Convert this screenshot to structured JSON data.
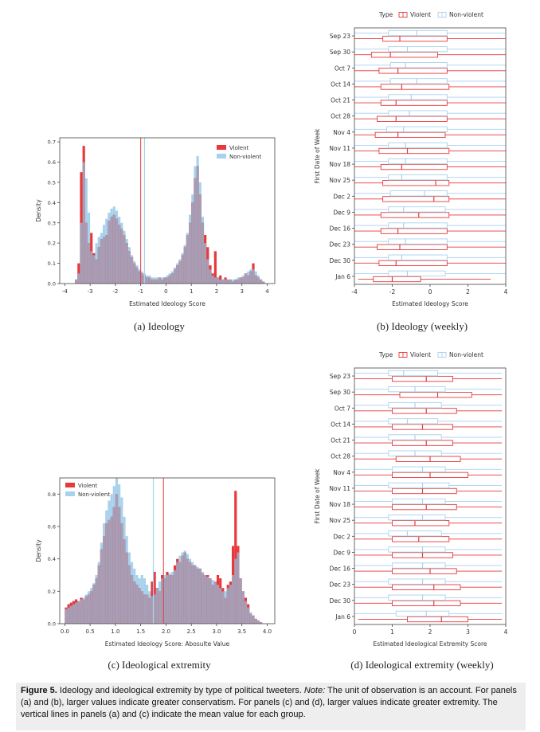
{
  "captions": {
    "a": "(a) Ideology",
    "b": "(b) Ideology (weekly)",
    "c": "(c) Ideological extremity",
    "d": "(d) Ideological extremity (weekly)"
  },
  "figure_caption": {
    "label": "Figure 5.",
    "text": "Ideology and ideological extremity by type of political tweeters.",
    "note_label": "Note:",
    "note_text": "The unit of observation is an account. For panels (a) and (b), larger values indicate greater conservatism. For panels (c) and (d), larger values indicate greater extremity. The vertical lines in panels (a) and (c) indicate the mean value for each group."
  },
  "colors": {
    "violent": "#e8383b",
    "nonviolent": "#a8d2ec",
    "overlap": "#a79eb6"
  },
  "chart_data": [
    {
      "id": "a",
      "type": "histogram",
      "xlabel": "Estimated Ideology Score",
      "ylabel": "Density",
      "xlim": [
        -4.2,
        4.3
      ],
      "ylim": [
        0,
        0.72
      ],
      "xticks": [
        -4,
        -3,
        -2,
        -1,
        0,
        1,
        2,
        3,
        4
      ],
      "yticks": [
        0.0,
        0.1,
        0.2,
        0.3,
        0.4,
        0.5,
        0.6,
        0.7
      ],
      "legend": [
        "Violent",
        "Non-violent"
      ],
      "legend_position": "top-right",
      "means": {
        "Violent": -1.0,
        "Non-violent": -0.85
      },
      "grid": false,
      "series": [
        {
          "name": "Non-violent",
          "x_start": -3.6,
          "bin_width": 0.1,
          "values": [
            0.02,
            0.05,
            0.3,
            0.6,
            0.52,
            0.35,
            0.16,
            0.14,
            0.2,
            0.23,
            0.25,
            0.29,
            0.32,
            0.35,
            0.37,
            0.38,
            0.36,
            0.33,
            0.3,
            0.26,
            0.22,
            0.18,
            0.14,
            0.11,
            0.09,
            0.07,
            0.06,
            0.05,
            0.04,
            0.04,
            0.03,
            0.03,
            0.03,
            0.03,
            0.03,
            0.03,
            0.04,
            0.05,
            0.06,
            0.08,
            0.1,
            0.12,
            0.15,
            0.19,
            0.25,
            0.34,
            0.44,
            0.58,
            0.63,
            0.5,
            0.33,
            0.2,
            0.12,
            0.07,
            0.04,
            0.03,
            0.03,
            0.02,
            0.02,
            0.02,
            0.02,
            0.02,
            0.02,
            0.02,
            0.03,
            0.03,
            0.04,
            0.05,
            0.06,
            0.07,
            0.07,
            0.06,
            0.04,
            0.02,
            0.01
          ]
        },
        {
          "name": "Violent",
          "x_start": -3.6,
          "bin_width": 0.1,
          "values": [
            0.02,
            0.1,
            0.55,
            0.68,
            0.3,
            0.2,
            0.25,
            0.15,
            0.12,
            0.18,
            0.22,
            0.23,
            0.24,
            0.31,
            0.33,
            0.34,
            0.32,
            0.29,
            0.27,
            0.24,
            0.2,
            0.16,
            0.13,
            0.1,
            0.08,
            0.06,
            0.05,
            0.04,
            0.03,
            0.03,
            0.02,
            0.02,
            0.02,
            0.03,
            0.02,
            0.03,
            0.03,
            0.04,
            0.05,
            0.07,
            0.09,
            0.11,
            0.14,
            0.18,
            0.24,
            0.3,
            0.4,
            0.52,
            0.58,
            0.44,
            0.3,
            0.24,
            0.18,
            0.09,
            0.05,
            0.16,
            0.03,
            0.04,
            0.02,
            0.03,
            0.02,
            0.02,
            0.01,
            0.02,
            0.02,
            0.03,
            0.03,
            0.05,
            0.04,
            0.06,
            0.1,
            0.04,
            0.03,
            0.02,
            0.01
          ]
        }
      ]
    },
    {
      "id": "b",
      "type": "boxplot",
      "orientation": "horizontal",
      "xlabel": "Estimated Ideology Score",
      "ylabel": "First Date of Week",
      "xlim": [
        -4,
        4
      ],
      "xticks": [
        -4,
        -2,
        0,
        2,
        4
      ],
      "legend_title": "Type",
      "legend": [
        "Violent",
        "Non-violent"
      ],
      "legend_position": "top",
      "categories": [
        "Sep 23",
        "Sep 30",
        "Oct 7",
        "Oct 14",
        "Oct 21",
        "Oct 28",
        "Nov 4",
        "Nov 11",
        "Nov 18",
        "Nov 25",
        "Dec 2",
        "Dec 9",
        "Dec 16",
        "Dec 23",
        "Dec 30",
        "Jan 6"
      ],
      "series": [
        {
          "name": "Violent",
          "boxes": [
            [
              -4,
              -2.5,
              -1.6,
              0.9,
              4
            ],
            [
              -4,
              -3.1,
              -2.1,
              0.4,
              4
            ],
            [
              -4,
              -2.7,
              -1.7,
              0.9,
              4
            ],
            [
              -4,
              -2.6,
              -1.5,
              1.0,
              4
            ],
            [
              -4,
              -2.6,
              -1.8,
              0.9,
              4
            ],
            [
              -4,
              -2.8,
              -1.8,
              0.9,
              4
            ],
            [
              -4,
              -2.9,
              -1.7,
              0.8,
              4
            ],
            [
              -4,
              -2.7,
              -1.2,
              1.0,
              4
            ],
            [
              -4,
              -2.6,
              -1.5,
              0.9,
              4
            ],
            [
              -4,
              -2.5,
              0.3,
              1.0,
              4
            ],
            [
              -4,
              -2.5,
              0.2,
              1.0,
              4
            ],
            [
              -4,
              -2.6,
              -0.6,
              1.0,
              4
            ],
            [
              -4,
              -2.6,
              -1.7,
              0.9,
              4
            ],
            [
              -4,
              -2.8,
              -1.6,
              0.9,
              4
            ],
            [
              -4,
              -2.7,
              -1.8,
              0.9,
              4
            ],
            [
              -3.8,
              -3.0,
              -2.0,
              -0.5,
              3.2
            ]
          ]
        },
        {
          "name": "Non-violent",
          "boxes": [
            [
              -4,
              -2.2,
              -0.7,
              0.9,
              4
            ],
            [
              -4,
              -2.2,
              -1.2,
              0.9,
              4
            ],
            [
              -4,
              -2.1,
              -1.3,
              0.9,
              4
            ],
            [
              -4,
              -2.1,
              -0.7,
              0.9,
              4
            ],
            [
              -4,
              -2.2,
              -1.0,
              0.9,
              4
            ],
            [
              -4,
              -2.2,
              -1.1,
              0.9,
              4
            ],
            [
              -4,
              -2.3,
              -1.4,
              0.9,
              4
            ],
            [
              -4,
              -2.2,
              -1.3,
              0.9,
              4
            ],
            [
              -4,
              -2.2,
              -1.3,
              0.9,
              4
            ],
            [
              -4,
              -2.2,
              -1.5,
              0.9,
              4
            ],
            [
              -4,
              -2.1,
              -0.3,
              0.9,
              4
            ],
            [
              -4,
              -2.2,
              -1.4,
              0.8,
              4
            ],
            [
              -4,
              -2.2,
              -1.4,
              0.9,
              4
            ],
            [
              -4,
              -2.2,
              -1.3,
              0.9,
              4
            ],
            [
              -4,
              -2.2,
              -1.5,
              0.9,
              4
            ],
            [
              -4,
              -2.2,
              -1.2,
              0.8,
              4
            ]
          ]
        }
      ]
    },
    {
      "id": "c",
      "type": "histogram",
      "xlabel": "Estimated Ideology Score: Abosulte Value",
      "ylabel": "Density",
      "xlim": [
        -0.1,
        4.15
      ],
      "ylim": [
        0,
        0.9
      ],
      "xticks": [
        0.0,
        0.5,
        1.0,
        1.5,
        2.0,
        2.5,
        3.0,
        3.5,
        4.0
      ],
      "yticks": [
        0.0,
        0.2,
        0.4,
        0.6,
        0.8
      ],
      "legend": [
        "Violent",
        "Non-violent"
      ],
      "legend_position": "top-left",
      "means": {
        "Violent": 1.95,
        "Non-violent": 1.75
      },
      "grid": false,
      "series": [
        {
          "name": "Non-violent",
          "x_start": 0.0,
          "bin_width": 0.05,
          "values": [
            0.09,
            0.1,
            0.11,
            0.12,
            0.13,
            0.14,
            0.15,
            0.16,
            0.18,
            0.2,
            0.22,
            0.25,
            0.3,
            0.38,
            0.5,
            0.62,
            0.7,
            0.76,
            0.8,
            0.85,
            0.9,
            0.86,
            0.78,
            0.66,
            0.54,
            0.44,
            0.38,
            0.34,
            0.3,
            0.28,
            0.3,
            0.28,
            0.24,
            0.2,
            0.17,
            0.18,
            0.22,
            0.26,
            0.28,
            0.3,
            0.3,
            0.31,
            0.32,
            0.33,
            0.38,
            0.42,
            0.44,
            0.45,
            0.43,
            0.4,
            0.38,
            0.36,
            0.35,
            0.34,
            0.32,
            0.3,
            0.29,
            0.28,
            0.27,
            0.26,
            0.24,
            0.22,
            0.2,
            0.2,
            0.22,
            0.24,
            0.3,
            0.4,
            0.44,
            0.28,
            0.2,
            0.14,
            0.1,
            0.07,
            0.05,
            0.03,
            0.02,
            0.01
          ]
        },
        {
          "name": "Violent",
          "x_start": 0.0,
          "bin_width": 0.05,
          "values": [
            0.1,
            0.12,
            0.13,
            0.14,
            0.15,
            0.14,
            0.16,
            0.15,
            0.17,
            0.18,
            0.2,
            0.24,
            0.28,
            0.36,
            0.46,
            0.54,
            0.62,
            0.64,
            0.66,
            0.72,
            0.8,
            0.72,
            0.62,
            0.52,
            0.44,
            0.36,
            0.3,
            0.26,
            0.24,
            0.22,
            0.2,
            0.18,
            0.18,
            0.16,
            0.26,
            0.32,
            0.22,
            0.2,
            0.3,
            0.28,
            0.32,
            0.3,
            0.3,
            0.36,
            0.4,
            0.38,
            0.42,
            0.44,
            0.4,
            0.38,
            0.36,
            0.36,
            0.34,
            0.34,
            0.31,
            0.3,
            0.3,
            0.28,
            0.24,
            0.26,
            0.3,
            0.28,
            0.22,
            0.16,
            0.24,
            0.26,
            0.48,
            0.82,
            0.48,
            0.28,
            0.2,
            0.16,
            0.12,
            0.06,
            0.05,
            0.03,
            0.02,
            0.01
          ]
        }
      ]
    },
    {
      "id": "d",
      "type": "boxplot",
      "orientation": "horizontal",
      "xlabel": "Estimated Ideological Extremity Score",
      "ylabel": "First Date of Week",
      "xlim": [
        0,
        4
      ],
      "xticks": [
        0,
        1,
        2,
        3,
        4
      ],
      "legend_title": "Type",
      "legend": [
        "Violent",
        "Non-violent"
      ],
      "legend_position": "top",
      "categories": [
        "Sep 23",
        "Sep 30",
        "Oct 7",
        "Oct 14",
        "Oct 21",
        "Oct 28",
        "Nov 4",
        "Nov 11",
        "Nov 18",
        "Nov 25",
        "Dec 2",
        "Dec 9",
        "Dec 16",
        "Dec 23",
        "Dec 30",
        "Jan 6"
      ],
      "series": [
        {
          "name": "Violent",
          "boxes": [
            [
              0,
              1.0,
              1.9,
              2.6,
              3.9
            ],
            [
              0,
              1.2,
              2.2,
              3.1,
              3.9
            ],
            [
              0,
              1.0,
              1.9,
              2.7,
              3.9
            ],
            [
              0,
              1.0,
              1.8,
              2.6,
              3.9
            ],
            [
              0,
              1.0,
              1.9,
              2.6,
              3.9
            ],
            [
              0,
              1.1,
              2.0,
              2.8,
              3.9
            ],
            [
              0,
              1.0,
              2.0,
              3.0,
              3.9
            ],
            [
              0,
              1.0,
              1.8,
              2.7,
              3.9
            ],
            [
              0,
              1.0,
              1.9,
              2.7,
              3.9
            ],
            [
              0,
              1.0,
              1.6,
              2.5,
              3.9
            ],
            [
              0,
              1.0,
              1.7,
              2.5,
              3.9
            ],
            [
              0,
              1.0,
              1.8,
              2.6,
              3.9
            ],
            [
              0,
              1.0,
              2.0,
              2.7,
              3.9
            ],
            [
              0,
              1.0,
              2.1,
              2.8,
              3.9
            ],
            [
              0,
              1.0,
              2.1,
              2.8,
              3.9
            ],
            [
              0.1,
              1.4,
              2.3,
              3.0,
              3.9
            ]
          ]
        },
        {
          "name": "Non-violent",
          "boxes": [
            [
              0,
              0.9,
              1.3,
              2.2,
              3.9
            ],
            [
              0,
              0.9,
              1.6,
              2.4,
              3.9
            ],
            [
              0,
              0.9,
              1.6,
              2.3,
              3.9
            ],
            [
              0,
              0.9,
              1.4,
              2.2,
              3.9
            ],
            [
              0,
              0.9,
              1.6,
              2.3,
              3.9
            ],
            [
              0,
              0.9,
              1.6,
              2.3,
              3.9
            ],
            [
              0,
              1.0,
              1.8,
              2.4,
              3.9
            ],
            [
              0,
              0.9,
              1.8,
              2.5,
              3.9
            ],
            [
              0,
              1.0,
              1.8,
              2.4,
              3.9
            ],
            [
              0,
              0.9,
              1.8,
              2.4,
              3.9
            ],
            [
              0,
              0.9,
              1.4,
              2.3,
              3.9
            ],
            [
              0,
              0.9,
              1.8,
              2.4,
              3.9
            ],
            [
              0,
              1.0,
              1.8,
              2.4,
              3.9
            ],
            [
              0,
              0.9,
              1.8,
              2.4,
              3.9
            ],
            [
              0,
              0.9,
              1.8,
              2.4,
              3.9
            ],
            [
              0,
              1.1,
              1.9,
              2.5,
              3.9
            ]
          ]
        }
      ]
    }
  ]
}
